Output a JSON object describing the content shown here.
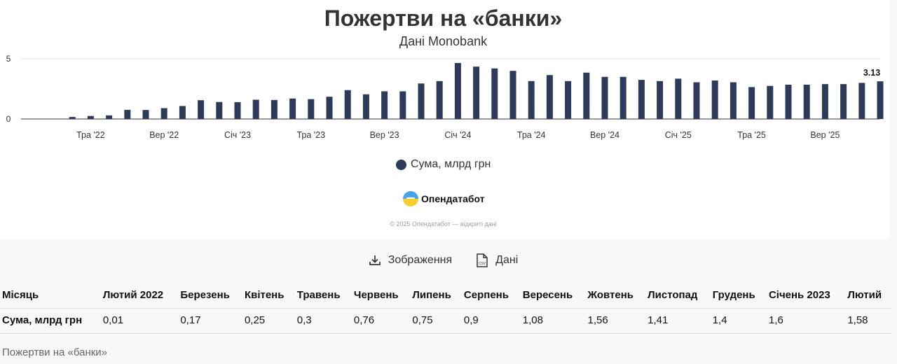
{
  "chart": {
    "title": "Пожертви на «банки»",
    "subtitle": "Дані Monobank",
    "legend": "Сума, млрд грн",
    "last_label": "3.13",
    "y_ticks": [
      "5",
      "0"
    ],
    "x_ticks": [
      "Тра '22",
      "Вер '22",
      "Січ '23",
      "Тра '23",
      "Вер '23",
      "Січ '24",
      "Тра '24",
      "Вер '24",
      "Січ '25",
      "Тра '25",
      "Вер '25"
    ]
  },
  "chart_data": {
    "type": "bar",
    "title": "Пожертви на «банки»",
    "subtitle": "Дані Monobank",
    "xlabel": "",
    "ylabel": "",
    "ylim": [
      0,
      5
    ],
    "grid": true,
    "legend_position": "bottom",
    "series": [
      {
        "name": "Сума, млрд грн",
        "color": "#2d3a5a",
        "values": [
          0.01,
          0.17,
          0.25,
          0.3,
          0.76,
          0.75,
          0.9,
          1.08,
          1.56,
          1.41,
          1.4,
          1.6,
          1.58,
          1.7,
          1.65,
          1.85,
          2.4,
          2.05,
          2.3,
          2.3,
          2.95,
          3.15,
          4.65,
          4.35,
          4.2,
          4.0,
          3.15,
          3.65,
          3.15,
          3.85,
          3.5,
          3.5,
          3.25,
          3.15,
          3.35,
          3.05,
          3.2,
          3.05,
          2.65,
          2.75,
          2.85,
          2.85,
          2.9,
          2.9,
          3.0,
          3.13
        ]
      }
    ],
    "tick_labels": [
      "Тра '22",
      "Вер '22",
      "Січ '23",
      "Тра '23",
      "Вер '23",
      "Січ '24",
      "Тра '24",
      "Вер '24",
      "Січ '25",
      "Тра '25",
      "Вер '25"
    ],
    "annotations": [
      "3.13"
    ]
  },
  "branding": {
    "name": "Опендатабот",
    "copyright": "© 2025 Опендатабот — відкриті дані"
  },
  "actions": {
    "image_label": "Зображення",
    "data_label": "Дані"
  },
  "table": {
    "headers": [
      "Місяць",
      "Лютий 2022",
      "Березень",
      "Квітень",
      "Травень",
      "Червень",
      "Липень",
      "Серпень",
      "Вересень",
      "Жовтень",
      "Листопад",
      "Грудень",
      "Січень 2023",
      "Лютий"
    ],
    "row_label": "Сума, млрд грн",
    "row_values": [
      "0,01",
      "0,17",
      "0,25",
      "0,3",
      "0,76",
      "0,75",
      "0,9",
      "1,08",
      "1,56",
      "1,41",
      "1,4",
      "1,6",
      "1,58"
    ]
  },
  "caption": "Пожертви на «банки»"
}
